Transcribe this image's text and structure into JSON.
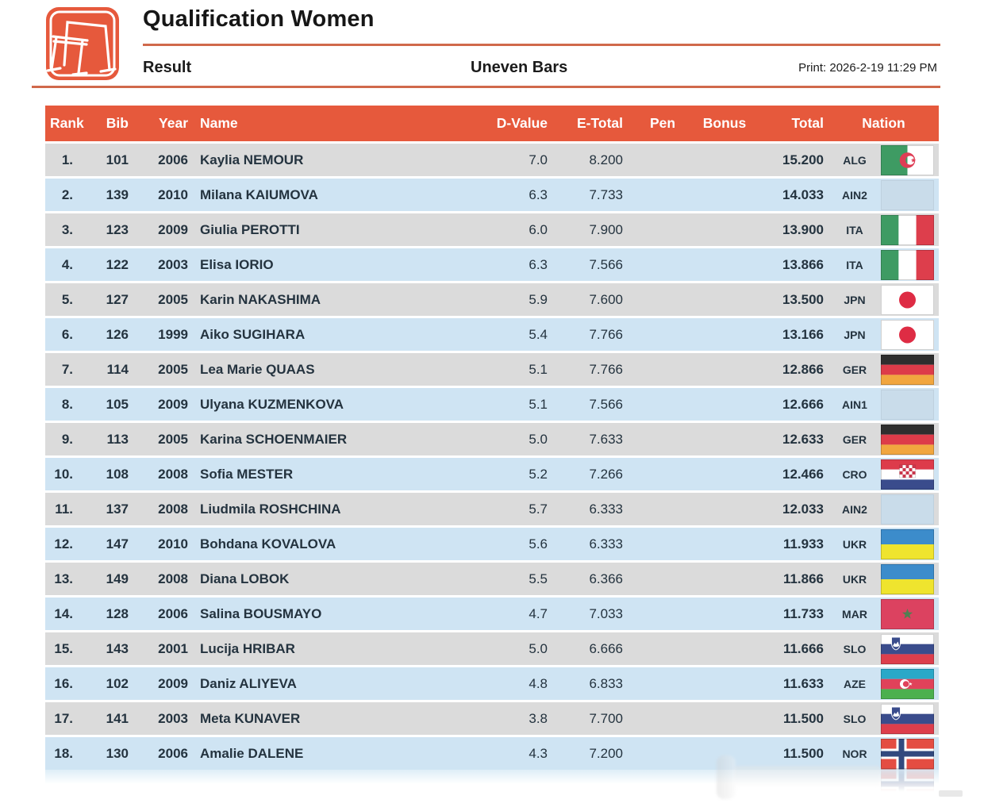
{
  "header": {
    "title": "Qualification Women",
    "section_label": "Result",
    "apparatus": "Uneven Bars",
    "print_label": "Print: 2026-2-19 11:29 PM",
    "logo_icon": "uneven-bars-pictogram"
  },
  "colors": {
    "accent_orange": "#E6593C",
    "rule_orange": "#D0694B",
    "row_gray": "#DBDBDB",
    "row_blue": "#CFE4F3",
    "header_text": "#FFFFFF",
    "body_text": "#24333F",
    "neutral_flag": "#C9DCEA"
  },
  "table": {
    "columns": [
      "Rank",
      "Bib",
      "Year",
      "Name",
      "D-Value",
      "E-Total",
      "Pen",
      "Bonus",
      "Total",
      "Nation"
    ],
    "rows": [
      {
        "rank": "1.",
        "bib": "101",
        "year": "2006",
        "name": "Kaylia NEMOUR",
        "d_value": "7.0",
        "e_total": "8.200",
        "pen": "",
        "bonus": "",
        "total": "15.200",
        "nation": "ALG",
        "flag": "ALG"
      },
      {
        "rank": "2.",
        "bib": "139",
        "year": "2010",
        "name": "Milana KAIUMOVA",
        "d_value": "6.3",
        "e_total": "7.733",
        "pen": "",
        "bonus": "",
        "total": "14.033",
        "nation": "AIN2",
        "flag": "AIN"
      },
      {
        "rank": "3.",
        "bib": "123",
        "year": "2009",
        "name": "Giulia PEROTTI",
        "d_value": "6.0",
        "e_total": "7.900",
        "pen": "",
        "bonus": "",
        "total": "13.900",
        "nation": "ITA",
        "flag": "ITA"
      },
      {
        "rank": "4.",
        "bib": "122",
        "year": "2003",
        "name": "Elisa IORIO",
        "d_value": "6.3",
        "e_total": "7.566",
        "pen": "",
        "bonus": "",
        "total": "13.866",
        "nation": "ITA",
        "flag": "ITA"
      },
      {
        "rank": "5.",
        "bib": "127",
        "year": "2005",
        "name": "Karin NAKASHIMA",
        "d_value": "5.9",
        "e_total": "7.600",
        "pen": "",
        "bonus": "",
        "total": "13.500",
        "nation": "JPN",
        "flag": "JPN"
      },
      {
        "rank": "6.",
        "bib": "126",
        "year": "1999",
        "name": "Aiko SUGIHARA",
        "d_value": "5.4",
        "e_total": "7.766",
        "pen": "",
        "bonus": "",
        "total": "13.166",
        "nation": "JPN",
        "flag": "JPN"
      },
      {
        "rank": "7.",
        "bib": "114",
        "year": "2005",
        "name": "Lea Marie QUAAS",
        "d_value": "5.1",
        "e_total": "7.766",
        "pen": "",
        "bonus": "",
        "total": "12.866",
        "nation": "GER",
        "flag": "GER"
      },
      {
        "rank": "8.",
        "bib": "105",
        "year": "2009",
        "name": "Ulyana KUZMENKOVA",
        "d_value": "5.1",
        "e_total": "7.566",
        "pen": "",
        "bonus": "",
        "total": "12.666",
        "nation": "AIN1",
        "flag": "AIN"
      },
      {
        "rank": "9.",
        "bib": "113",
        "year": "2005",
        "name": "Karina SCHOENMAIER",
        "d_value": "5.0",
        "e_total": "7.633",
        "pen": "",
        "bonus": "",
        "total": "12.633",
        "nation": "GER",
        "flag": "GER"
      },
      {
        "rank": "10.",
        "bib": "108",
        "year": "2008",
        "name": "Sofia MESTER",
        "d_value": "5.2",
        "e_total": "7.266",
        "pen": "",
        "bonus": "",
        "total": "12.466",
        "nation": "CRO",
        "flag": "CRO"
      },
      {
        "rank": "11.",
        "bib": "137",
        "year": "2008",
        "name": "Liudmila ROSHCHINA",
        "d_value": "5.7",
        "e_total": "6.333",
        "pen": "",
        "bonus": "",
        "total": "12.033",
        "nation": "AIN2",
        "flag": "AIN"
      },
      {
        "rank": "12.",
        "bib": "147",
        "year": "2010",
        "name": "Bohdana KOVALOVA",
        "d_value": "5.6",
        "e_total": "6.333",
        "pen": "",
        "bonus": "",
        "total": "11.933",
        "nation": "UKR",
        "flag": "UKR"
      },
      {
        "rank": "13.",
        "bib": "149",
        "year": "2008",
        "name": "Diana LOBOK",
        "d_value": "5.5",
        "e_total": "6.366",
        "pen": "",
        "bonus": "",
        "total": "11.866",
        "nation": "UKR",
        "flag": "UKR"
      },
      {
        "rank": "14.",
        "bib": "128",
        "year": "2006",
        "name": "Salina BOUSMAYO",
        "d_value": "4.7",
        "e_total": "7.033",
        "pen": "",
        "bonus": "",
        "total": "11.733",
        "nation": "MAR",
        "flag": "MAR"
      },
      {
        "rank": "15.",
        "bib": "143",
        "year": "2001",
        "name": "Lucija HRIBAR",
        "d_value": "5.0",
        "e_total": "6.666",
        "pen": "",
        "bonus": "",
        "total": "11.666",
        "nation": "SLO",
        "flag": "SLO"
      },
      {
        "rank": "16.",
        "bib": "102",
        "year": "2009",
        "name": "Daniz ALIYEVA",
        "d_value": "4.8",
        "e_total": "6.833",
        "pen": "",
        "bonus": "",
        "total": "11.633",
        "nation": "AZE",
        "flag": "AZE"
      },
      {
        "rank": "17.",
        "bib": "141",
        "year": "2003",
        "name": "Meta KUNAVER",
        "d_value": "3.8",
        "e_total": "7.700",
        "pen": "",
        "bonus": "",
        "total": "11.500",
        "nation": "SLO",
        "flag": "SLO"
      },
      {
        "rank": "18.",
        "bib": "130",
        "year": "2006",
        "name": "Amalie DALENE",
        "d_value": "4.3",
        "e_total": "7.200",
        "pen": "",
        "bonus": "",
        "total": "11.500",
        "nation": "NOR",
        "flag": "NOR"
      }
    ]
  }
}
